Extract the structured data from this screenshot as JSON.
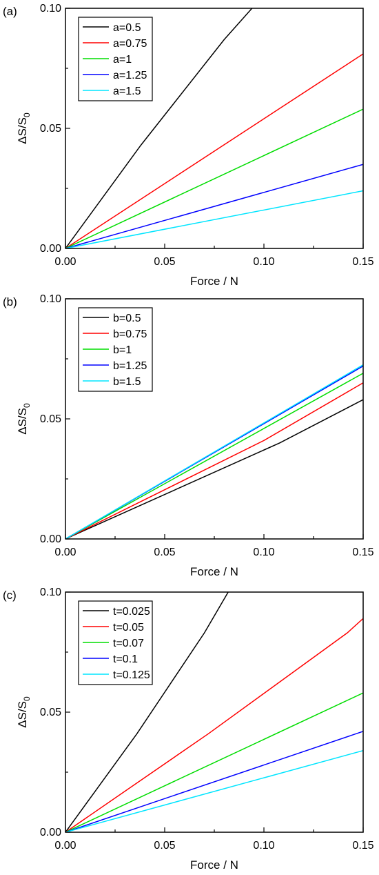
{
  "chart_data": [
    {
      "type": "line",
      "panel_label": "(a)",
      "xlabel": "Force / N",
      "ylabel": "ΔS/S",
      "ylabel_sub": "0",
      "xlim": [
        0,
        0.15
      ],
      "ylim": [
        0,
        0.1
      ],
      "xticks": [
        "0.00",
        "0.05",
        "0.10",
        "0.15"
      ],
      "yticks": [
        "0.00",
        "0.05",
        "0.10"
      ],
      "legend_position": "top-left",
      "grid": false,
      "series": [
        {
          "name": "a=0.5",
          "color": "#000000",
          "x": [
            0,
            0.038,
            0.08,
            0.094
          ],
          "y": [
            0,
            0.043,
            0.087,
            0.1
          ]
        },
        {
          "name": "a=0.75",
          "color": "#ff0000",
          "x": [
            0,
            0.15
          ],
          "y": [
            0,
            0.081
          ]
        },
        {
          "name": "a=1",
          "color": "#00dd00",
          "x": [
            0,
            0.15
          ],
          "y": [
            0,
            0.058
          ]
        },
        {
          "name": "a=1.25",
          "color": "#0000ff",
          "x": [
            0,
            0.15
          ],
          "y": [
            0,
            0.035
          ]
        },
        {
          "name": "a=1.5",
          "color": "#00e5ff",
          "x": [
            0,
            0.15
          ],
          "y": [
            0,
            0.024
          ]
        }
      ]
    },
    {
      "type": "line",
      "panel_label": "(b)",
      "xlabel": "Force / N",
      "ylabel": "ΔS/S",
      "ylabel_sub": "0",
      "xlim": [
        0,
        0.15
      ],
      "ylim": [
        0,
        0.1
      ],
      "xticks": [
        "0.00",
        "0.05",
        "0.10",
        "0.15"
      ],
      "yticks": [
        "0.00",
        "0.05",
        "0.10"
      ],
      "legend_position": "top-left",
      "grid": false,
      "series": [
        {
          "name": "b=0.5",
          "color": "#000000",
          "x": [
            0,
            0.108,
            0.15
          ],
          "y": [
            0,
            0.04,
            0.058
          ]
        },
        {
          "name": "b=0.75",
          "color": "#ff0000",
          "x": [
            0,
            0.1,
            0.15
          ],
          "y": [
            0,
            0.041,
            0.065
          ]
        },
        {
          "name": "b=1",
          "color": "#00dd00",
          "x": [
            0,
            0.15
          ],
          "y": [
            0,
            0.069
          ]
        },
        {
          "name": "b=1.25",
          "color": "#0000ff",
          "x": [
            0,
            0.15
          ],
          "y": [
            0,
            0.072
          ]
        },
        {
          "name": "b=1.5",
          "color": "#00e5ff",
          "x": [
            0,
            0.15
          ],
          "y": [
            0,
            0.0725
          ]
        }
      ]
    },
    {
      "type": "line",
      "panel_label": "(c)",
      "xlabel": "Force / N",
      "ylabel": "ΔS/S",
      "ylabel_sub": "0",
      "xlim": [
        0,
        0.15
      ],
      "ylim": [
        0,
        0.1
      ],
      "xticks": [
        "0.00",
        "0.05",
        "0.10",
        "0.15"
      ],
      "yticks": [
        "0.00",
        "0.05",
        "0.10"
      ],
      "legend_position": "top-left",
      "grid": false,
      "series": [
        {
          "name": "t=0.025",
          "color": "#000000",
          "x": [
            0,
            0.036,
            0.07,
            0.082
          ],
          "y": [
            0,
            0.041,
            0.083,
            0.1
          ]
        },
        {
          "name": "t=0.05",
          "color": "#ff0000",
          "x": [
            0,
            0.072,
            0.142,
            0.15
          ],
          "y": [
            0,
            0.041,
            0.083,
            0.089
          ]
        },
        {
          "name": "t=0.07",
          "color": "#00dd00",
          "x": [
            0,
            0.15
          ],
          "y": [
            0,
            0.058
          ]
        },
        {
          "name": "t=0.1",
          "color": "#0000ff",
          "x": [
            0,
            0.15
          ],
          "y": [
            0,
            0.042
          ]
        },
        {
          "name": "t=0.125",
          "color": "#00e5ff",
          "x": [
            0,
            0.15
          ],
          "y": [
            0,
            0.034
          ]
        }
      ]
    }
  ]
}
